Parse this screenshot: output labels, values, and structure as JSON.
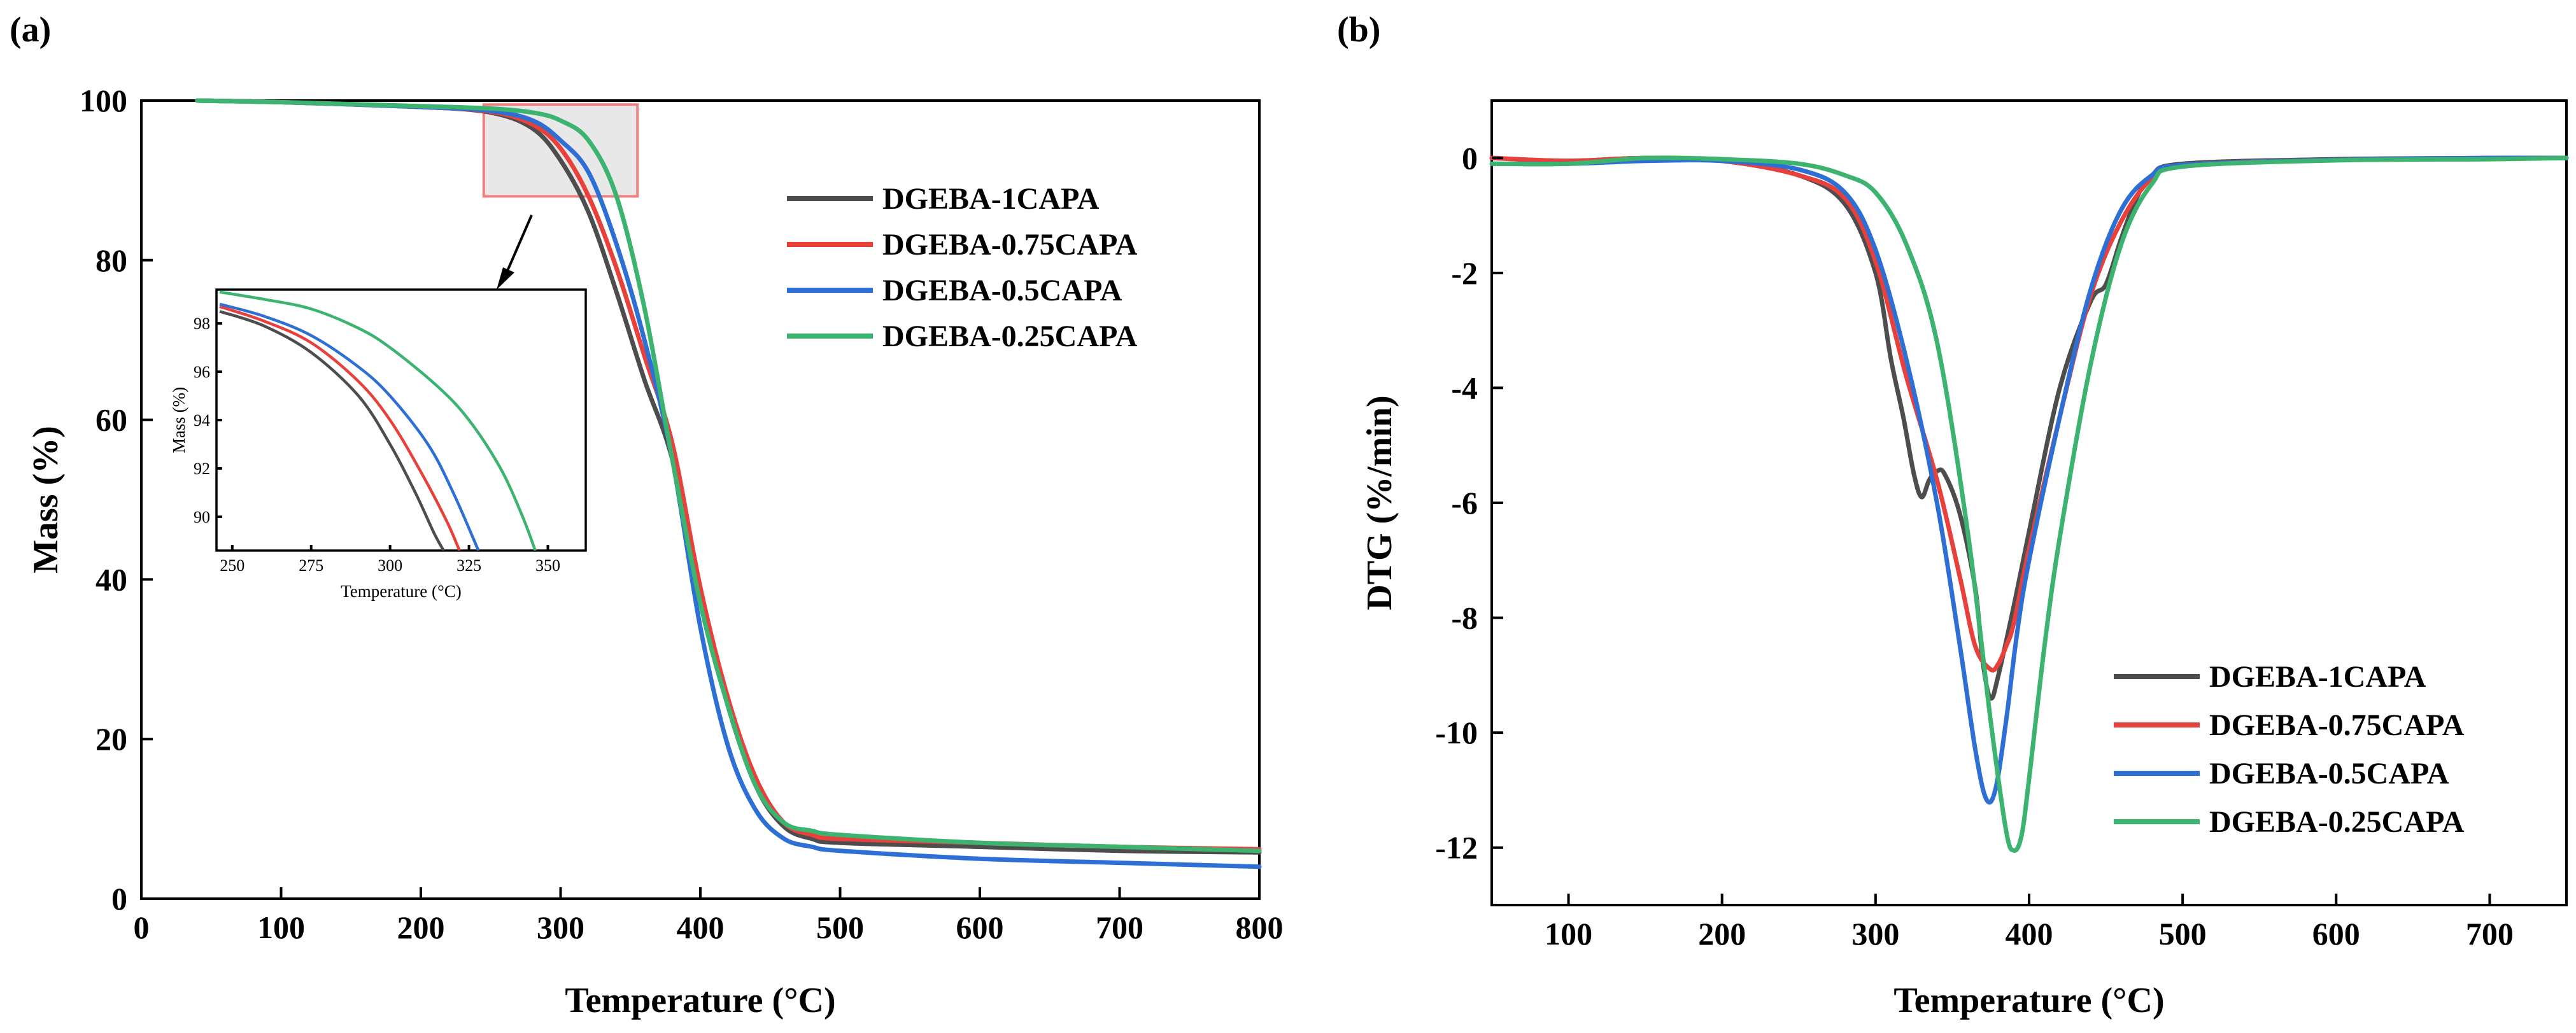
{
  "chart_data": [
    {
      "panel_label": "(a)",
      "type": "line",
      "xlabel": "Temperature (°C)",
      "ylabel": "Mass (%)",
      "xlim": [
        0,
        800
      ],
      "ylim": [
        0,
        100
      ],
      "xticks": [
        0,
        100,
        200,
        300,
        400,
        500,
        600,
        700,
        800
      ],
      "yticks": [
        0,
        20,
        40,
        60,
        80,
        100
      ],
      "grid": false,
      "legend_position": "top-right",
      "series": [
        {
          "name": "DGEBA-1CAPA",
          "color": "#4d4d4d",
          "x": [
            40,
            100,
            200,
            250,
            280,
            300,
            320,
            340,
            360,
            380,
            400,
            420,
            440,
            460,
            480,
            500,
            600,
            700,
            800
          ],
          "y": [
            100,
            99.8,
            99.2,
            98.5,
            96.5,
            92.5,
            86,
            76,
            65,
            55,
            38,
            24,
            14,
            9,
            7.5,
            7,
            6.5,
            6,
            5.8
          ]
        },
        {
          "name": "DGEBA-0.75CAPA",
          "color": "#e8413c",
          "x": [
            40,
            100,
            200,
            250,
            280,
            300,
            320,
            340,
            360,
            380,
            400,
            420,
            440,
            460,
            480,
            500,
            600,
            700,
            800
          ],
          "y": [
            100,
            99.8,
            99.2,
            98.6,
            97,
            94,
            88,
            79,
            68,
            57,
            39,
            25,
            15,
            9.5,
            8,
            7.5,
            7,
            6.5,
            6.2
          ]
        },
        {
          "name": "DGEBA-0.5CAPA",
          "color": "#2e6fd6",
          "x": [
            40,
            100,
            200,
            250,
            280,
            300,
            320,
            340,
            360,
            380,
            400,
            420,
            440,
            460,
            480,
            500,
            600,
            700,
            800
          ],
          "y": [
            100,
            99.8,
            99.2,
            98.7,
            97.5,
            95,
            91,
            82,
            70,
            55,
            34,
            19,
            11,
            7.5,
            6.5,
            6,
            5,
            4.5,
            4
          ]
        },
        {
          "name": "DGEBA-0.25CAPA",
          "color": "#3cb36e",
          "x": [
            40,
            100,
            200,
            250,
            280,
            300,
            320,
            340,
            360,
            380,
            400,
            420,
            440,
            460,
            480,
            500,
            600,
            700,
            800
          ],
          "y": [
            100,
            99.8,
            99.3,
            99,
            98.5,
            97.5,
            95,
            88,
            74,
            55,
            37,
            24,
            14,
            9.5,
            8.5,
            8,
            7,
            6.5,
            6
          ]
        }
      ],
      "annotation": "zoom box 245–355 °C, 88–99.5 % magnified in inset",
      "inset": {
        "xlabel": "Temperature (°C)",
        "ylabel": "Mass (%)",
        "xlim": [
          245,
          362
        ],
        "ylim": [
          88.6,
          99.4
        ],
        "xticks": [
          250,
          275,
          300,
          325,
          350
        ],
        "yticks": [
          90,
          92,
          94,
          96,
          98
        ],
        "series": [
          {
            "name": "DGEBA-1CAPA",
            "x": [
              246,
              260,
              275,
              290,
              300,
              308,
              314,
              317
            ],
            "y": [
              98.5,
              97.9,
              96.8,
              95,
              93,
              91,
              89.3,
              88.6
            ]
          },
          {
            "name": "DGEBA-0.75CAPA",
            "x": [
              246,
              260,
              275,
              290,
              300,
              310,
              318,
              322
            ],
            "y": [
              98.7,
              98.1,
              97.2,
              95.6,
              94,
              91.8,
              89.8,
              88.6
            ]
          },
          {
            "name": "DGEBA-0.5CAPA",
            "x": [
              246,
              260,
              275,
              290,
              300,
              312,
              320,
              328
            ],
            "y": [
              98.8,
              98.3,
              97.5,
              96.2,
              95,
              93,
              91,
              88.6
            ]
          },
          {
            "name": "DGEBA-0.25CAPA",
            "x": [
              246,
              260,
              275,
              290,
              300,
              315,
              325,
              335,
              342,
              346
            ],
            "y": [
              99.3,
              99.0,
              98.6,
              97.8,
              97,
              95.4,
              94,
              92,
              90,
              88.6
            ]
          }
        ]
      }
    },
    {
      "panel_label": "(b)",
      "type": "line",
      "xlabel": "Temperature (°C)",
      "ylabel": "DTG (%/min)",
      "xlim": [
        50,
        750
      ],
      "ylim": [
        -13,
        1
      ],
      "xticks": [
        100,
        200,
        300,
        400,
        500,
        600,
        700
      ],
      "yticks": [
        0,
        -2,
        -4,
        -6,
        -8,
        -10,
        -12
      ],
      "grid": false,
      "legend_position": "bottom-right",
      "series": [
        {
          "name": "DGEBA-1CAPA",
          "color": "#4d4d4d",
          "x": [
            50,
            100,
            150,
            200,
            250,
            280,
            300,
            310,
            318,
            325,
            330,
            335,
            340,
            345,
            355,
            365,
            370,
            375,
            380,
            390,
            400,
            420,
            440,
            450,
            460,
            470,
            480,
            500,
            600,
            700,
            750
          ],
          "y": [
            0,
            -0.05,
            0,
            -0.05,
            -0.3,
            -0.8,
            -2,
            -3.5,
            -4.5,
            -5.5,
            -5.9,
            -5.6,
            -5.45,
            -5.5,
            -6.2,
            -7.5,
            -8.8,
            -9.4,
            -9,
            -7.8,
            -6.5,
            -4,
            -2.5,
            -2.2,
            -1.4,
            -0.7,
            -0.3,
            -0.1,
            -0.02,
            0,
            0
          ]
        },
        {
          "name": "DGEBA-0.75CAPA",
          "color": "#e8413c",
          "x": [
            50,
            100,
            150,
            200,
            250,
            280,
            300,
            320,
            340,
            355,
            365,
            375,
            380,
            385,
            390,
            400,
            420,
            440,
            460,
            480,
            500,
            600,
            700,
            750
          ],
          "y": [
            0,
            -0.05,
            0,
            -0.05,
            -0.3,
            -0.7,
            -1.8,
            -3.8,
            -5.6,
            -7.3,
            -8.5,
            -8.9,
            -8.8,
            -8.5,
            -8.1,
            -6.8,
            -4.5,
            -2.4,
            -1.1,
            -0.35,
            -0.12,
            -0.03,
            0,
            0
          ]
        },
        {
          "name": "DGEBA-0.5CAPA",
          "color": "#2e6fd6",
          "x": [
            50,
            100,
            150,
            200,
            250,
            280,
            300,
            320,
            340,
            355,
            365,
            372,
            378,
            385,
            392,
            400,
            420,
            440,
            460,
            480,
            500,
            600,
            700,
            750
          ],
          "y": [
            -0.1,
            -0.1,
            -0.05,
            -0.05,
            -0.2,
            -0.6,
            -1.6,
            -3.5,
            -6,
            -8.5,
            -10.3,
            -11.15,
            -11,
            -9.8,
            -8.3,
            -7,
            -4.5,
            -2.3,
            -0.9,
            -0.3,
            -0.12,
            -0.03,
            0,
            0
          ]
        },
        {
          "name": "DGEBA-0.25CAPA",
          "color": "#3cb36e",
          "x": [
            50,
            100,
            150,
            200,
            250,
            280,
            300,
            320,
            340,
            360,
            375,
            385,
            390,
            395,
            400,
            410,
            420,
            440,
            460,
            480,
            500,
            600,
            700,
            750
          ],
          "y": [
            -0.1,
            -0.1,
            0,
            -0.02,
            -0.1,
            -0.3,
            -0.6,
            -1.5,
            -3.2,
            -6.5,
            -9.8,
            -11.7,
            -12.05,
            -11.8,
            -10.8,
            -8.5,
            -6.6,
            -3.6,
            -1.5,
            -0.45,
            -0.15,
            -0.04,
            -0.02,
            0
          ]
        }
      ]
    }
  ]
}
